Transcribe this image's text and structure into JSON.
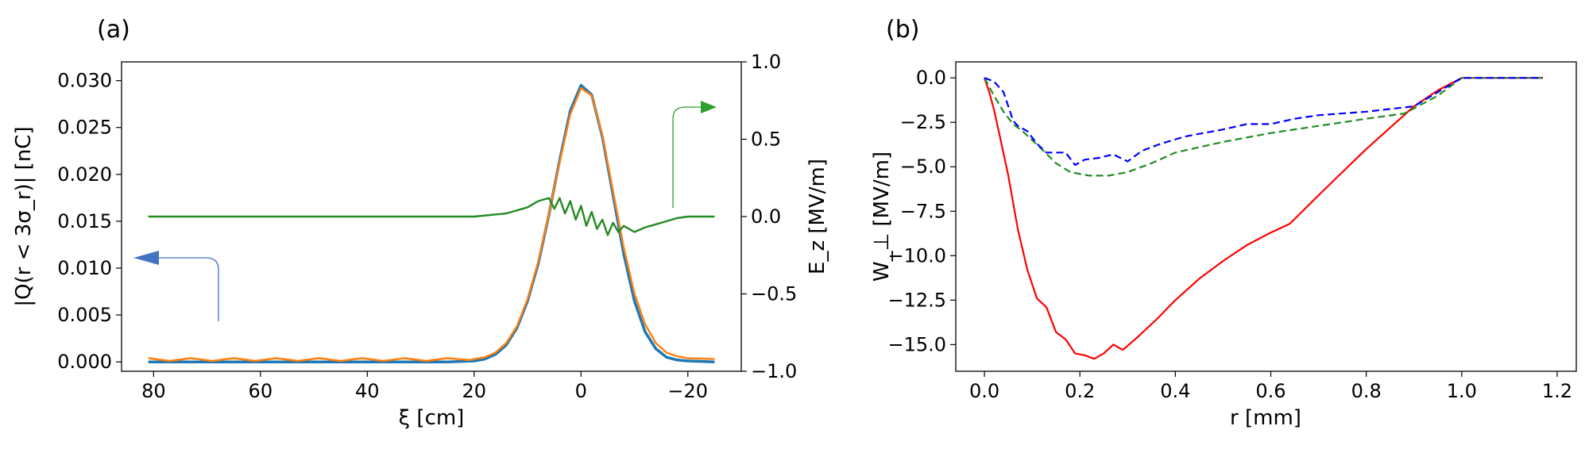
{
  "chart_data": [
    {
      "panel": "(a)",
      "type": "line",
      "xlabel": "ξ [cm]",
      "ylabel": "|Q(r < 3σ_r)| [nC]",
      "y2label": "E_z [MV/m]",
      "x_inverted": true,
      "xlim": [
        86,
        -30
      ],
      "ylim": [
        -0.001,
        0.032
      ],
      "y2lim": [
        -1.0,
        1.0
      ],
      "xticks": [
        80,
        60,
        40,
        20,
        0,
        -20
      ],
      "xtick_labels": [
        "80",
        "60",
        "40",
        "20",
        "0",
        "−20"
      ],
      "yticks": [
        0.0,
        0.005,
        0.01,
        0.015,
        0.02,
        0.025,
        0.03
      ],
      "ytick_labels": [
        "0.000",
        "0.005",
        "0.010",
        "0.015",
        "0.020",
        "0.025",
        "0.030"
      ],
      "y2ticks": [
        -1.0,
        -0.5,
        0.0,
        0.5,
        1.0
      ],
      "y2tick_labels": [
        "−1.0",
        "−0.5",
        "0.0",
        "0.5",
        "1.0"
      ],
      "series": [
        {
          "name": "Q blue (left axis)",
          "color": "#1f77b4",
          "axis": "left",
          "x": [
            81,
            70,
            60,
            50,
            40,
            30,
            25,
            20,
            18,
            16,
            14,
            12,
            10,
            8,
            6,
            4,
            2,
            0,
            -2,
            -4,
            -6,
            -8,
            -10,
            -12,
            -14,
            -16,
            -18,
            -20,
            -25
          ],
          "y": [
            0.0,
            0.0,
            0.0,
            0.0,
            0.0,
            0.0,
            0.0,
            0.0001,
            0.0003,
            0.0008,
            0.0018,
            0.0036,
            0.0065,
            0.0105,
            0.0157,
            0.0215,
            0.0268,
            0.0295,
            0.0285,
            0.024,
            0.0178,
            0.0115,
            0.0065,
            0.0032,
            0.0014,
            0.0005,
            0.0002,
            0.0001,
            0.0
          ]
        },
        {
          "name": "Q orange (left axis)",
          "color": "#ff7f0e",
          "axis": "left",
          "x": [
            81,
            77,
            73,
            69,
            65,
            61,
            57,
            53,
            49,
            45,
            41,
            37,
            33,
            29,
            25,
            21,
            18,
            16,
            14,
            12,
            10,
            8,
            6,
            4,
            2,
            0,
            -2,
            -4,
            -6,
            -8,
            -10,
            -12,
            -14,
            -16,
            -18,
            -20,
            -25
          ],
          "y": [
            0.0004,
            0.0001,
            0.0004,
            0.0001,
            0.0004,
            0.0001,
            0.0004,
            0.0001,
            0.0004,
            0.0001,
            0.0004,
            0.0001,
            0.0004,
            0.0001,
            0.0004,
            0.0002,
            0.0005,
            0.001,
            0.002,
            0.0038,
            0.0067,
            0.0107,
            0.0158,
            0.0213,
            0.0264,
            0.0292,
            0.0284,
            0.0242,
            0.0182,
            0.0122,
            0.0073,
            0.004,
            0.002,
            0.001,
            0.0006,
            0.0004,
            0.0003
          ]
        },
        {
          "name": "E_z (right axis)",
          "color": "#228b22",
          "axis": "right",
          "x": [
            81,
            60,
            40,
            20,
            14,
            10,
            8,
            6,
            5,
            4,
            3,
            2,
            1,
            0,
            -1,
            -2,
            -3,
            -4,
            -5,
            -6,
            -7,
            -8,
            -10,
            -12,
            -14,
            -16,
            -18,
            -20,
            -25
          ],
          "y": [
            0.0,
            0.0,
            0.0,
            0.0,
            0.02,
            0.06,
            0.1,
            0.12,
            0.05,
            0.12,
            0.02,
            0.1,
            -0.02,
            0.07,
            -0.06,
            0.03,
            -0.08,
            -0.02,
            -0.12,
            -0.04,
            -0.1,
            -0.06,
            -0.1,
            -0.07,
            -0.05,
            -0.03,
            -0.01,
            0.0,
            0.0
          ]
        }
      ],
      "annotations": [
        "left arrow → left axis (Q)",
        "right arrow → right axis (E_z)"
      ]
    },
    {
      "panel": "(b)",
      "type": "line",
      "xlabel": "r [mm]",
      "ylabel": "W_⊥ [MV/m]",
      "xlim": [
        -0.06,
        1.24
      ],
      "ylim": [
        -16.5,
        0.9
      ],
      "xticks": [
        0.0,
        0.2,
        0.4,
        0.6,
        0.8,
        1.0,
        1.2
      ],
      "xtick_labels": [
        "0.0",
        "0.2",
        "0.4",
        "0.6",
        "0.8",
        "1.0",
        "1.2"
      ],
      "yticks": [
        0.0,
        -2.5,
        -5.0,
        -7.5,
        -10.0,
        -12.5,
        -15.0
      ],
      "ytick_labels": [
        "0.0",
        "−2.5",
        "−5.0",
        "−7.5",
        "−10.0",
        "−12.5",
        "−15.0"
      ],
      "series": [
        {
          "name": "red solid",
          "color": "#ff0000",
          "style": "solid",
          "x": [
            0.0,
            0.01,
            0.02,
            0.03,
            0.05,
            0.07,
            0.09,
            0.11,
            0.13,
            0.15,
            0.17,
            0.19,
            0.21,
            0.23,
            0.25,
            0.27,
            0.29,
            0.32,
            0.36,
            0.4,
            0.45,
            0.5,
            0.55,
            0.6,
            0.64,
            0.7,
            0.75,
            0.8,
            0.85,
            0.9,
            0.95,
            1.0,
            1.17
          ],
          "y": [
            0.0,
            -0.8,
            -1.8,
            -3.0,
            -5.5,
            -8.5,
            -10.8,
            -12.4,
            -12.9,
            -14.3,
            -14.7,
            -15.5,
            -15.6,
            -15.8,
            -15.5,
            -15.0,
            -15.3,
            -14.6,
            -13.6,
            -12.5,
            -11.3,
            -10.3,
            -9.4,
            -8.7,
            -8.2,
            -6.6,
            -5.3,
            -4.0,
            -2.8,
            -1.6,
            -0.7,
            0.0,
            0.0
          ]
        },
        {
          "name": "green dashed",
          "color": "#228b22",
          "style": "dashed",
          "x": [
            0.0,
            0.02,
            0.04,
            0.06,
            0.08,
            0.1,
            0.12,
            0.15,
            0.18,
            0.22,
            0.26,
            0.3,
            0.35,
            0.4,
            0.5,
            0.6,
            0.7,
            0.8,
            0.88,
            0.95,
            1.0,
            1.17
          ],
          "y": [
            0.0,
            -1.0,
            -1.9,
            -2.6,
            -3.0,
            -3.5,
            -4.0,
            -4.8,
            -5.3,
            -5.5,
            -5.5,
            -5.3,
            -4.8,
            -4.2,
            -3.6,
            -3.1,
            -2.7,
            -2.3,
            -2.0,
            -1.0,
            0.0,
            0.0
          ]
        },
        {
          "name": "blue dashed",
          "color": "#0000ff",
          "style": "dashed",
          "x": [
            0.0,
            0.02,
            0.04,
            0.06,
            0.07,
            0.09,
            0.11,
            0.13,
            0.17,
            0.19,
            0.21,
            0.24,
            0.27,
            0.3,
            0.33,
            0.37,
            0.42,
            0.5,
            0.55,
            0.6,
            0.65,
            0.7,
            0.8,
            0.9,
            0.95,
            1.0,
            1.17
          ],
          "y": [
            0.0,
            -0.2,
            -0.8,
            -2.4,
            -2.7,
            -3.0,
            -3.7,
            -4.2,
            -4.2,
            -4.9,
            -4.6,
            -4.5,
            -4.3,
            -4.7,
            -4.1,
            -3.7,
            -3.3,
            -2.9,
            -2.6,
            -2.6,
            -2.3,
            -2.1,
            -1.9,
            -1.6,
            -0.8,
            0.0,
            0.0
          ]
        }
      ]
    }
  ]
}
